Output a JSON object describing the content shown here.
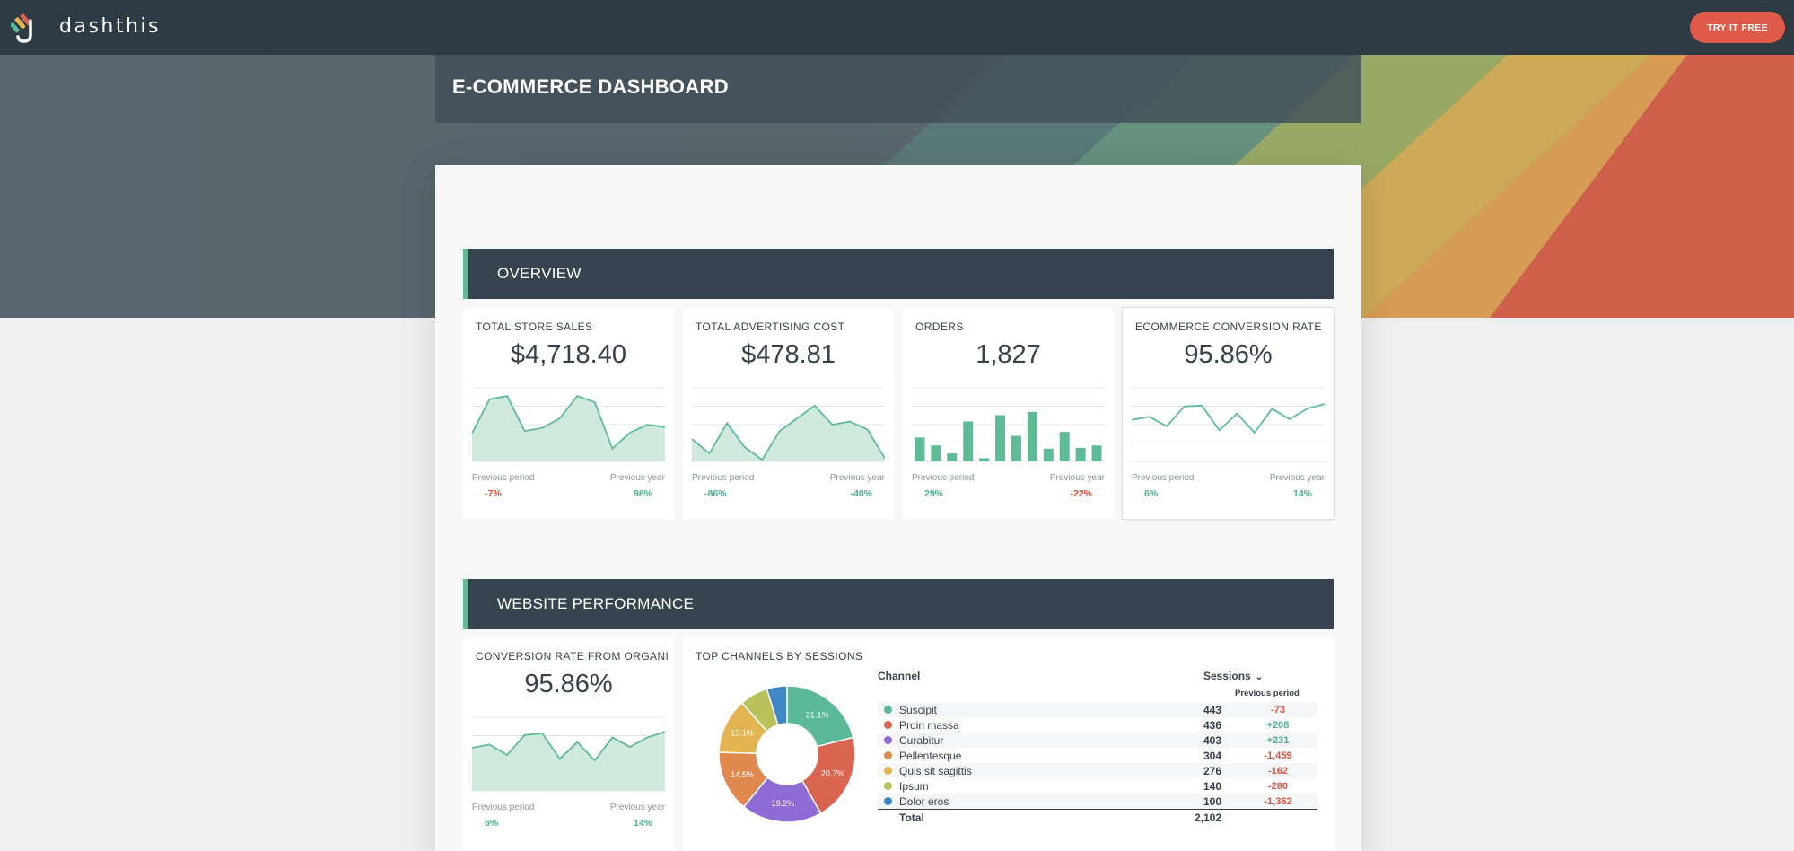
{
  "brand": {
    "name": "dashthis",
    "cta": "TRY IT FREE"
  },
  "page": {
    "title": "E-COMMERCE DASHBOARD"
  },
  "colors": {
    "accent": "#5dbb95",
    "positive": "#4caf88",
    "negative": "#d9533f",
    "header": "#37444f",
    "cta": "#e05a4a"
  },
  "overview": {
    "title": "OVERVIEW",
    "cards": [
      {
        "title": "TOTAL STORE SALES",
        "value": "$4,718.40",
        "chart": "area",
        "prev_label": "Previous period",
        "year_label": "Previous year",
        "prev": "-7%",
        "year": "98%",
        "prev_dir": "neg",
        "year_dir": "pos",
        "series": [
          35,
          78,
          82,
          38,
          42,
          54,
          82,
          74,
          16,
          36,
          46,
          43
        ]
      },
      {
        "title": "TOTAL ADVERTISING COST",
        "value": "$478.81",
        "chart": "area",
        "prev_label": "Previous period",
        "year_label": "Previous year",
        "prev": "-86%",
        "year": "-40%",
        "prev_dir": "pos",
        "year_dir": "pos",
        "series": [
          28,
          10,
          48,
          18,
          2,
          38,
          54,
          70,
          46,
          50,
          40,
          4
        ]
      },
      {
        "title": "ORDERS",
        "value": "1,827",
        "chart": "bar",
        "prev_label": "Previous period",
        "year_label": "Previous year",
        "prev": "29%",
        "year": "-22%",
        "prev_dir": "pos",
        "year_dir": "neg",
        "series": [
          30,
          20,
          10,
          50,
          4,
          58,
          32,
          62,
          16,
          37,
          17,
          20
        ]
      },
      {
        "title": "ECOMMERCE CONVERSION RATE",
        "value": "95.86%",
        "chart": "line",
        "prev_label": "Previous period",
        "year_label": "Previous year",
        "prev": "6%",
        "year": "14%",
        "prev_dir": "pos",
        "year_dir": "pos",
        "series": [
          52,
          56,
          44,
          69,
          70,
          39,
          60,
          36,
          66,
          53,
          66,
          72
        ]
      }
    ]
  },
  "website": {
    "title": "WEBSITE PERFORMANCE",
    "conversion_card": {
      "title": "CONVERSION RATE FROM ORGANI",
      "value": "95.86%",
      "prev_label": "Previous period",
      "year_label": "Previous year",
      "prev": "6%",
      "year": "14%",
      "prev_dir": "pos",
      "year_dir": "pos",
      "series": [
        54,
        58,
        45,
        70,
        72,
        40,
        61,
        38,
        67,
        55,
        67,
        74
      ]
    },
    "channels_card": {
      "title": "TOP CHANNELS BY SESSIONS",
      "col_channel": "Channel",
      "col_sessions": "Sessions",
      "col_prev": "Previous period",
      "rows": [
        {
          "name": "Suscipit",
          "sessions": "443",
          "delta": "-73",
          "dir": "neg",
          "color": "#5bb999",
          "pct": 21.1,
          "pct_label": "21.1%"
        },
        {
          "name": "Proin massa",
          "sessions": "436",
          "delta": "+208",
          "dir": "pos",
          "color": "#d9644f",
          "pct": 20.7,
          "pct_label": "20.7%"
        },
        {
          "name": "Curabitur",
          "sessions": "403",
          "delta": "+231",
          "dir": "pos",
          "color": "#8f6bd6",
          "pct": 19.2,
          "pct_label": "19.2%"
        },
        {
          "name": "Pellentesque",
          "sessions": "304",
          "delta": "-1,459",
          "dir": "neg",
          "color": "#e0894f",
          "pct": 14.5,
          "pct_label": "14.5%"
        },
        {
          "name": "Quis sit sagittis",
          "sessions": "276",
          "delta": "-162",
          "dir": "neg",
          "color": "#e3b552",
          "pct": 13.1,
          "pct_label": "13.1%"
        },
        {
          "name": "Ipsum",
          "sessions": "140",
          "delta": "-280",
          "dir": "neg",
          "color": "#b9c25a",
          "pct": 6.7,
          "pct_label": ""
        },
        {
          "name": "Dolor eros",
          "sessions": "100",
          "delta": "-1,362",
          "dir": "neg",
          "color": "#3e88c5",
          "pct": 4.8,
          "pct_label": ""
        }
      ],
      "total_label": "Total",
      "total_value": "2,102"
    }
  }
}
